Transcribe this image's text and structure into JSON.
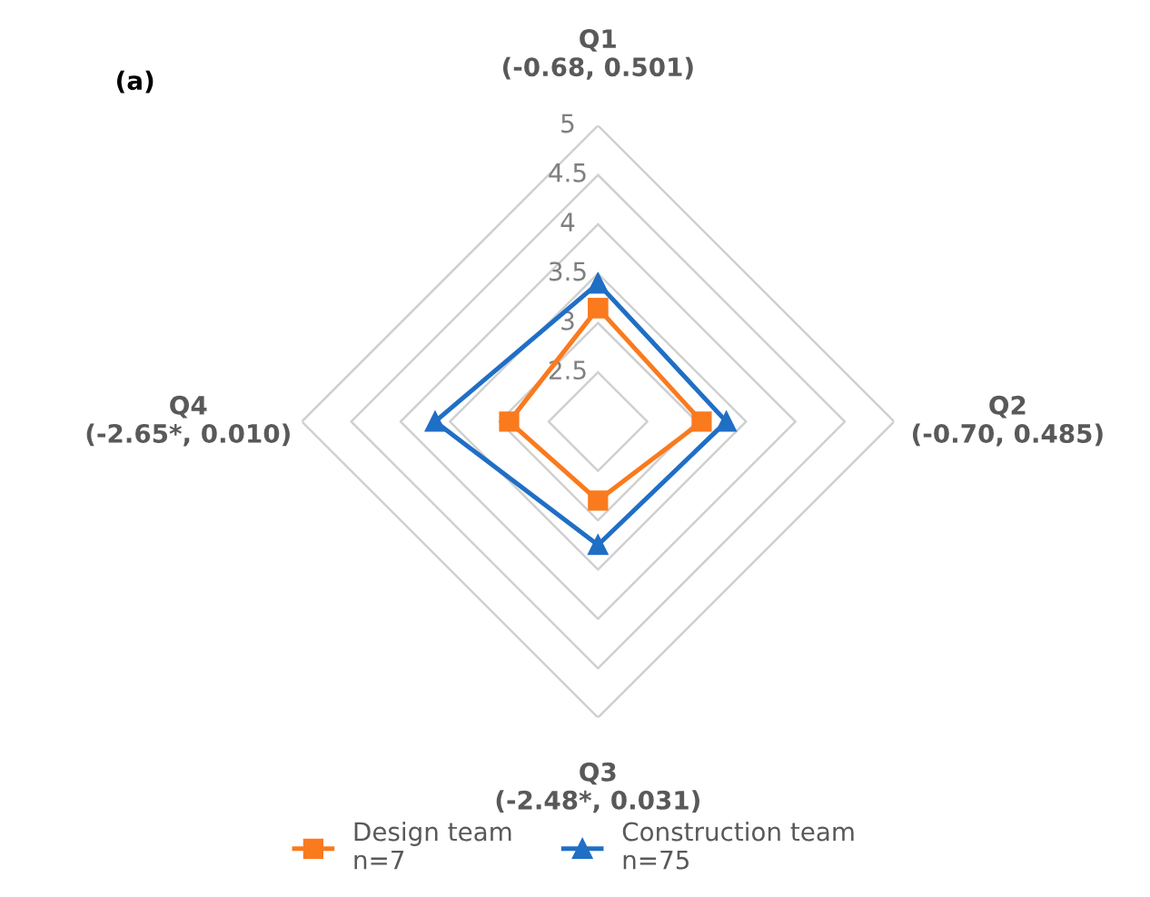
{
  "chart_data": {
    "type": "radar",
    "categories": [
      "Q1\n(-0.68, 0.501)",
      "Q2\n(-0.70, 0.485)",
      "Q3\n(-2.48*, 0.031)",
      "Q4\n(-2.65*, 0.010)"
    ],
    "series": [
      {
        "name": "Design team\nn=7",
        "color": "#fa7a1e",
        "marker": "square",
        "values": [
          3.15,
          3.05,
          2.8,
          2.9
        ]
      },
      {
        "name": "Construction team\nn=75",
        "color": "#1f6fc5",
        "marker": "triangle",
        "values": [
          3.4,
          3.3,
          3.25,
          3.65
        ]
      }
    ],
    "ylim": [
      2,
      5
    ],
    "yticks": [
      2.5,
      3,
      3.5,
      4,
      4.5,
      5
    ],
    "grid": true,
    "legend": "bottom",
    "annotations": [
      "(a)"
    ]
  }
}
